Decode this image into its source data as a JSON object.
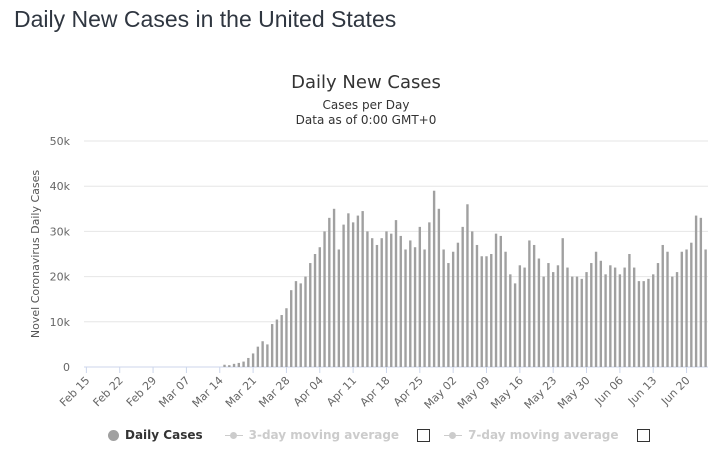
{
  "page_title": "Daily New Cases in the United States",
  "legend": {
    "daily": "Daily Cases",
    "avg3": "3-day moving average",
    "avg7": "7-day moving average"
  },
  "colors": {
    "bar": "#a0a0a0",
    "grid": "#e6e6e6",
    "axis": "#666666"
  },
  "chart_data": {
    "type": "bar",
    "title": "Daily New Cases",
    "subtitle": [
      "Cases per Day",
      "Data as of 0:00 GMT+0"
    ],
    "ylabel": "Novel Coronavirus Daily Cases",
    "xlabel": "",
    "ylim": [
      0,
      50000
    ],
    "yticks": [
      0,
      10000,
      20000,
      30000,
      40000,
      50000
    ],
    "ytick_labels": [
      "0",
      "10k",
      "20k",
      "30k",
      "40k",
      "50k"
    ],
    "grid": true,
    "legend_position": "bottom",
    "xtick_labels": [
      "Feb 15",
      "Feb 22",
      "Feb 29",
      "Mar 07",
      "Mar 14",
      "Mar 21",
      "Mar 28",
      "Apr 04",
      "Apr 11",
      "Apr 18",
      "Apr 25",
      "May 02",
      "May 09",
      "May 16",
      "May 23",
      "May 30",
      "Jun 06",
      "Jun 13",
      "Jun 20"
    ],
    "categories_start": "Feb 15",
    "categories_end": "Jun 21",
    "series": [
      {
        "name": "Daily Cases",
        "values": [
          0,
          0,
          0,
          0,
          0,
          0,
          0,
          0,
          0,
          0,
          0,
          0,
          0,
          0,
          0,
          0,
          0,
          0,
          0,
          0,
          0,
          0,
          0,
          0,
          0,
          0,
          0,
          0,
          0,
          500,
          400,
          700,
          900,
          1200,
          2000,
          3000,
          4500,
          5700,
          5000,
          9500,
          10500,
          11500,
          13000,
          17000,
          19000,
          18500,
          20000,
          23000,
          25000,
          26500,
          30000,
          33000,
          35000,
          26000,
          31500,
          34000,
          32000,
          33500,
          34500,
          30000,
          28500,
          27000,
          28500,
          30000,
          29500,
          32500,
          29000,
          26000,
          28000,
          26500,
          31000,
          26000,
          32000,
          39000,
          35000,
          26000,
          23000,
          25500,
          27500,
          31000,
          36000,
          30000,
          27000,
          24500,
          24500,
          25000,
          29500,
          29000,
          25500,
          20500,
          18500,
          22500,
          22000,
          28000,
          27000,
          24000,
          20000,
          23000,
          21000,
          22500,
          28500,
          22000,
          20000,
          20000,
          19500,
          21000,
          23000,
          25500,
          23500,
          20500,
          22500,
          22000,
          20500,
          22000,
          25000,
          22000,
          19000,
          19000,
          19500,
          20500,
          23000,
          27000,
          25500,
          20000,
          21000,
          25500,
          26000,
          27500,
          33500,
          33000,
          26000
        ]
      }
    ]
  }
}
